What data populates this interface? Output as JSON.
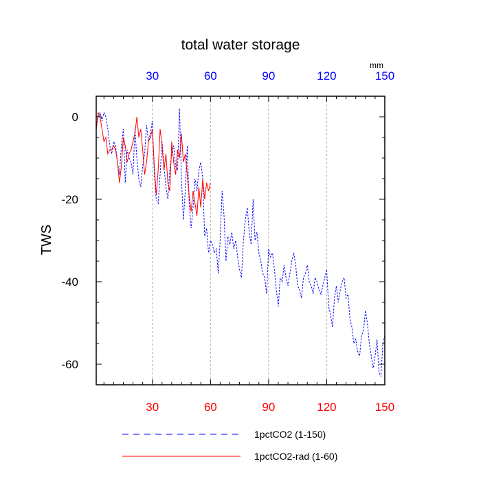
{
  "chart_data": {
    "type": "line",
    "title": "total water storage",
    "ylabel": "TWS",
    "xlabel": "",
    "top_units": "mm",
    "xlim": [
      1,
      150
    ],
    "ylim": [
      -65,
      5
    ],
    "x_ticks": [
      30,
      60,
      90,
      120,
      150
    ],
    "y_ticks": [
      0,
      -20,
      -40,
      -60
    ],
    "grid": "vertical dashed gridlines at x ticks",
    "legend_position": "bottom",
    "colors": {
      "bottom_ticks": "#ff0000",
      "top_ticks": "#0000ff"
    },
    "series": [
      {
        "name": "1pctCO2 (1-150)",
        "color": "#0000ff",
        "style": "dashed",
        "x": [
          1,
          2,
          3,
          4,
          5,
          6,
          7,
          8,
          9,
          10,
          11,
          12,
          13,
          14,
          15,
          16,
          17,
          18,
          19,
          20,
          21,
          22,
          23,
          24,
          25,
          26,
          27,
          28,
          29,
          30,
          31,
          32,
          33,
          34,
          35,
          36,
          37,
          38,
          39,
          40,
          41,
          42,
          43,
          44,
          45,
          46,
          47,
          48,
          49,
          50,
          51,
          52,
          53,
          54,
          55,
          56,
          57,
          58,
          59,
          60,
          61,
          62,
          63,
          64,
          65,
          66,
          67,
          68,
          69,
          70,
          71,
          72,
          73,
          74,
          75,
          76,
          77,
          78,
          79,
          80,
          81,
          82,
          83,
          84,
          85,
          86,
          87,
          88,
          89,
          90,
          91,
          92,
          93,
          94,
          95,
          96,
          97,
          98,
          99,
          100,
          101,
          102,
          103,
          104,
          105,
          106,
          107,
          108,
          109,
          110,
          111,
          112,
          113,
          114,
          115,
          116,
          117,
          118,
          119,
          120,
          121,
          122,
          123,
          124,
          125,
          126,
          127,
          128,
          129,
          130,
          131,
          132,
          133,
          134,
          135,
          136,
          137,
          138,
          139,
          140,
          141,
          142,
          143,
          144,
          145,
          146,
          147,
          148,
          149,
          150
        ],
        "values": [
          -3,
          0,
          1,
          -1,
          1,
          0,
          -3,
          -7,
          -9,
          -6,
          -7,
          -11,
          -14,
          -7,
          -3,
          -16,
          -8,
          -10,
          -11,
          -14,
          -3,
          -10,
          -15,
          -17,
          -12,
          -9,
          -2,
          -6,
          -4,
          -1,
          -14,
          -20,
          -21,
          -14,
          -6,
          -12,
          -17,
          -20,
          -13,
          -9,
          -7,
          -12,
          -13,
          2,
          -15,
          -25,
          -18,
          -7,
          -21,
          -27,
          -22,
          -15,
          -18,
          -13,
          -11,
          -15,
          -29,
          -27,
          -33,
          -30,
          -31,
          -33,
          -32,
          -38,
          -30,
          -18,
          -24,
          -35,
          -29,
          -31,
          -28,
          -32,
          -30,
          -34,
          -37,
          -39,
          -30,
          -25,
          -22,
          -28,
          -31,
          -20,
          -30,
          -28,
          -33,
          -35,
          -38,
          -39,
          -43,
          -32,
          -34,
          -33,
          -37,
          -42,
          -46,
          -39,
          -40,
          -36,
          -39,
          -41,
          -38,
          -35,
          -33,
          -36,
          -41,
          -42,
          -44,
          -39,
          -38,
          -36,
          -40,
          -41,
          -43,
          -39,
          -40,
          -42,
          -43,
          -41,
          -39,
          -37,
          -46,
          -48,
          -51,
          -44,
          -41,
          -45,
          -42,
          -40,
          -39,
          -44,
          -43,
          -49,
          -51,
          -55,
          -54,
          -57,
          -58,
          -53,
          -52,
          -47,
          -50,
          -55,
          -58,
          -61,
          -58,
          -54,
          -62,
          -63,
          -55,
          -53
        ]
      },
      {
        "name": "1pctCO2-rad (1-60)",
        "color": "#ff0000",
        "style": "solid",
        "x": [
          1,
          2,
          3,
          4,
          5,
          6,
          7,
          8,
          9,
          10,
          11,
          12,
          13,
          14,
          15,
          16,
          17,
          18,
          19,
          20,
          21,
          22,
          23,
          24,
          25,
          26,
          27,
          28,
          29,
          30,
          31,
          32,
          33,
          34,
          35,
          36,
          37,
          38,
          39,
          40,
          41,
          42,
          43,
          44,
          45,
          46,
          47,
          48,
          49,
          50,
          51,
          52,
          53,
          54,
          55,
          56,
          57,
          58,
          59,
          60
        ],
        "values": [
          -3,
          1,
          0,
          -3,
          -6,
          -5,
          -9,
          -8,
          -8,
          -7,
          -8,
          -11,
          -16,
          -12,
          -5,
          -7,
          -11,
          -9,
          -8,
          -6,
          -4,
          0,
          -5,
          -3,
          -8,
          -14,
          -11,
          -6,
          -5,
          -3,
          -12,
          -19,
          -13,
          -3,
          -7,
          -13,
          -9,
          -16,
          -18,
          -6,
          -11,
          -14,
          -8,
          -10,
          -4,
          -11,
          -9,
          -14,
          -19,
          -23,
          -18,
          -21,
          -24,
          -17,
          -22,
          -15,
          -20,
          -16,
          -18,
          -16
        ]
      }
    ]
  }
}
